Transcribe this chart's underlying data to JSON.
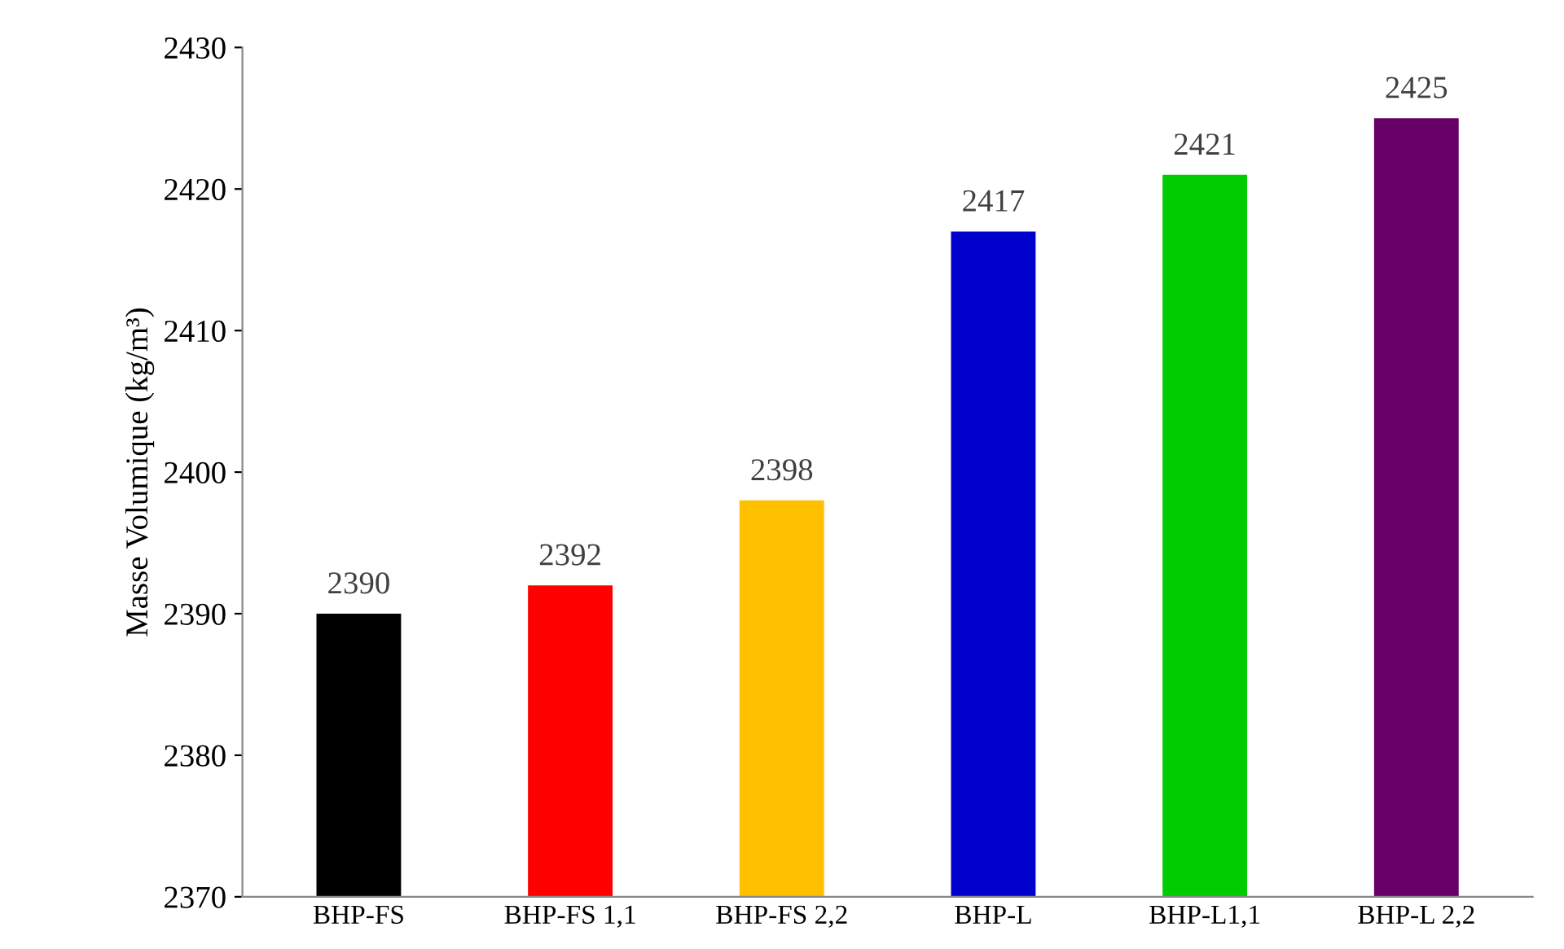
{
  "chart_data": {
    "type": "bar",
    "ylabel": "Masse Volumique (kg/m³)",
    "categories": [
      "BHP-FS",
      "BHP-FS 1,1",
      "BHP-FS 2,2",
      "BHP-L",
      "BHP-L1,1",
      "BHP-L 2,2"
    ],
    "values": [
      2390,
      2392,
      2398,
      2417,
      2421,
      2425
    ],
    "colors": [
      "#000000",
      "#ff0000",
      "#ffc000",
      "#0000cc",
      "#00cc00",
      "#660066"
    ],
    "ylim": [
      2370,
      2430
    ],
    "yticks": [
      2370,
      2380,
      2390,
      2400,
      2410,
      2420,
      2430
    ],
    "data_labels": true,
    "grid": false,
    "legend": false
  }
}
